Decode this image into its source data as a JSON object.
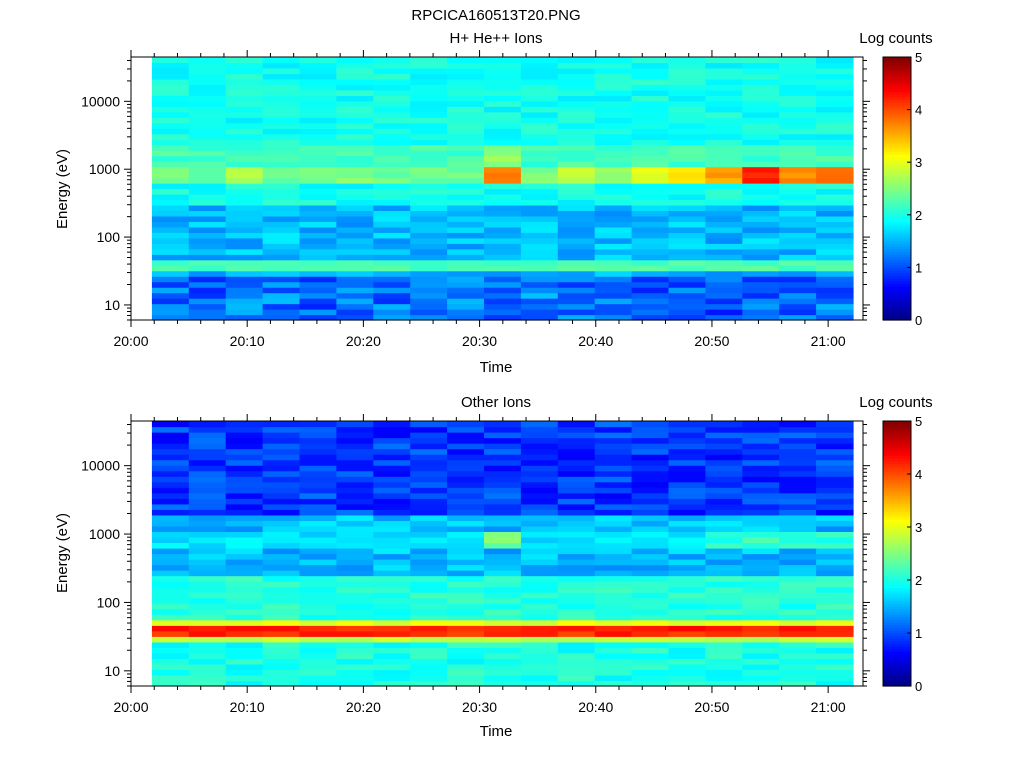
{
  "figure_title": "RPCICA160513T20.PNG",
  "chart_data": [
    {
      "type": "heatmap",
      "title": "H+ He++ Ions",
      "xlabel": "Time",
      "ylabel": "Energy (eV)",
      "x_ticks": [
        "20:00",
        "20:10",
        "20:20",
        "20:30",
        "20:40",
        "20:50",
        "21:00"
      ],
      "x_range_minutes": [
        0,
        63
      ],
      "data_start_minute": 1.8,
      "y_scale": "log",
      "y_ticks": [
        "10",
        "100",
        "1000",
        "10000"
      ],
      "y_range": [
        6,
        45000
      ],
      "colorbar": {
        "label": "Log counts",
        "ticks": [
          "0",
          "1",
          "2",
          "3",
          "4",
          "5"
        ],
        "range": [
          0,
          5
        ],
        "colormap": "jet"
      },
      "time_bins": 19,
      "energy_bins": 48,
      "bands": [
        {
          "energy_range_eV": [
            6,
            25
          ],
          "log_counts": 1.1,
          "description": "low-energy region, blue"
        },
        {
          "energy_range_eV": [
            35,
            48
          ],
          "log_counts": 2.3,
          "description": "cyan stripe"
        },
        {
          "energy_range_eV": [
            700,
            1000
          ],
          "log_counts": 3.0,
          "description": "intermittent bright band at ~800 eV, peaking ~4 near 20:55"
        },
        {
          "energy_range_eV": [
            1000,
            45000
          ],
          "log_counts": 2.0,
          "description": "diffuse background"
        }
      ]
    },
    {
      "type": "heatmap",
      "title": "Other Ions",
      "xlabel": "Time",
      "ylabel": "Energy (eV)",
      "x_ticks": [
        "20:00",
        "20:10",
        "20:20",
        "20:30",
        "20:40",
        "20:50",
        "21:00"
      ],
      "x_range_minutes": [
        0,
        63
      ],
      "data_start_minute": 1.8,
      "y_scale": "log",
      "y_ticks": [
        "10",
        "100",
        "1000",
        "10000"
      ],
      "y_range": [
        6,
        45000
      ],
      "colorbar": {
        "label": "Log counts",
        "ticks": [
          "0",
          "1",
          "2",
          "3",
          "4",
          "5"
        ],
        "range": [
          0,
          5
        ],
        "colormap": "jet"
      },
      "time_bins": 19,
      "energy_bins": 48,
      "bands": [
        {
          "energy_range_eV": [
            6,
            25
          ],
          "log_counts": 2.0,
          "description": "low-energy region, cyan"
        },
        {
          "energy_range_eV": [
            30,
            45
          ],
          "log_counts": 4.2,
          "description": "strong band around 35-40 eV"
        },
        {
          "energy_range_eV": [
            700,
            1000
          ],
          "log_counts": 2.1,
          "description": "weak band near 800 eV"
        },
        {
          "energy_range_eV": [
            2000,
            45000
          ],
          "log_counts": 0.9,
          "description": "low counts, dark blue"
        }
      ]
    }
  ]
}
